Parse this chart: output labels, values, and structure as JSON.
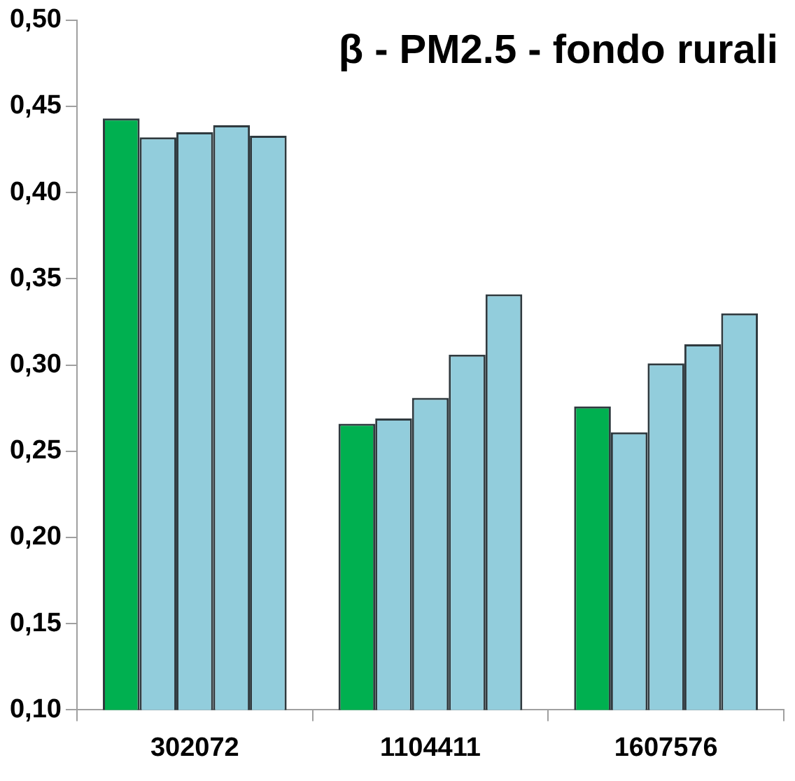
{
  "chart_data": {
    "type": "bar",
    "title": "β - PM2.5 - fondo rurali",
    "categories": [
      "302072",
      "1104411",
      "1607576"
    ],
    "series": [
      {
        "color": "#00b050",
        "values": [
          0.443,
          0.266,
          0.276
        ]
      },
      {
        "color": "#92cddc",
        "values": [
          0.432,
          0.269,
          0.261
        ]
      },
      {
        "color": "#92cddc",
        "values": [
          0.435,
          0.281,
          0.301
        ]
      },
      {
        "color": "#92cddc",
        "values": [
          0.439,
          0.306,
          0.312
        ]
      },
      {
        "color": "#92cddc",
        "values": [
          0.433,
          0.341,
          0.33
        ]
      }
    ],
    "ylim": [
      0.1,
      0.5
    ],
    "yticks": [
      {
        "value": 0.1,
        "label": "0,10"
      },
      {
        "value": 0.15,
        "label": "0,15"
      },
      {
        "value": 0.2,
        "label": "0,20"
      },
      {
        "value": 0.25,
        "label": "0,25"
      },
      {
        "value": 0.3,
        "label": "0,30"
      },
      {
        "value": 0.35,
        "label": "0,35"
      },
      {
        "value": 0.4,
        "label": "0,40"
      },
      {
        "value": 0.45,
        "label": "0,45"
      },
      {
        "value": 0.5,
        "label": "0,50"
      }
    ],
    "grid": false,
    "legend": false
  }
}
